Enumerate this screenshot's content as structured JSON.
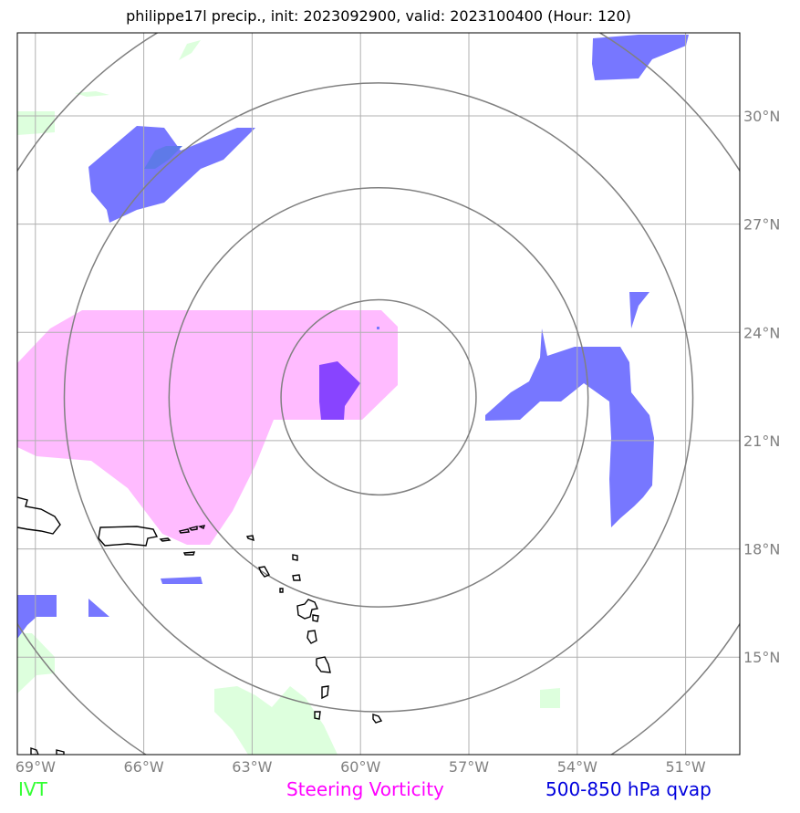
{
  "title": "philippe17l precip., init: 2023092900, valid: 2023100400 (Hour: 120)",
  "map": {
    "lon_range": [
      -69.5,
      -49.5
    ],
    "lat_range": [
      12.3,
      32.3
    ],
    "lon_ticks": [
      {
        "value": -69,
        "label": "69°W"
      },
      {
        "value": -66,
        "label": "66°W"
      },
      {
        "value": -63,
        "label": "63°W"
      },
      {
        "value": -60,
        "label": "60°W"
      },
      {
        "value": -57,
        "label": "57°W"
      },
      {
        "value": -54,
        "label": "54°W"
      },
      {
        "value": -51,
        "label": "51°W"
      }
    ],
    "lat_ticks": [
      {
        "value": 30,
        "label": "30°N"
      },
      {
        "value": 27,
        "label": "27°N"
      },
      {
        "value": 24,
        "label": "24°N"
      },
      {
        "value": 21,
        "label": "21°N"
      },
      {
        "value": 18,
        "label": "18°N"
      },
      {
        "value": 15,
        "label": "15°N"
      }
    ],
    "grid": true,
    "storm_center": {
      "lon": -59.5,
      "lat": 22.2
    },
    "range_rings_deg": [
      2.7,
      5.8,
      8.7,
      11.8
    ],
    "colors": {
      "ivt": "#ddffdd",
      "vorticity": "#ffbbff",
      "vorticity_core": "#8844ff",
      "qvap": "#7777ff",
      "qvap_dark": "#5e7ae8",
      "grid": "#b0b0b0",
      "rings": "#808080",
      "coast": "#000000"
    }
  },
  "legend": {
    "ivt": "IVT",
    "vorticity": "Steering Vorticity",
    "qvap": "500-850 hPa qvap"
  }
}
